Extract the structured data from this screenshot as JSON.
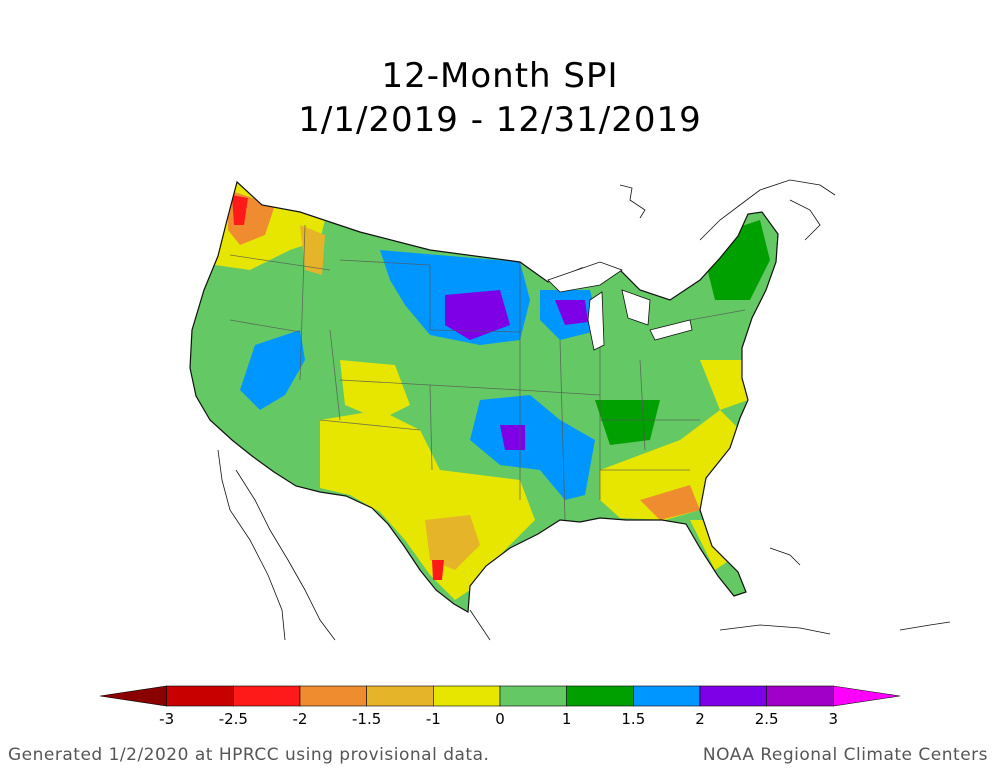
{
  "title": "12-Month SPI",
  "subtitle": "1/1/2019 - 12/31/2019",
  "legend": {
    "bins": [
      {
        "from": null,
        "to": -3,
        "color": "#8b0000"
      },
      {
        "from": -3,
        "to": -2.5,
        "color": "#c80000"
      },
      {
        "from": -2.5,
        "to": -2,
        "color": "#ff1a1a"
      },
      {
        "from": -2,
        "to": -1.5,
        "color": "#f08c30"
      },
      {
        "from": -1.5,
        "to": -1,
        "color": "#e6b428"
      },
      {
        "from": -1,
        "to": 0,
        "color": "#e6e600"
      },
      {
        "from": 0,
        "to": 1,
        "color": "#64c864"
      },
      {
        "from": 1,
        "to": 1.5,
        "color": "#00a000"
      },
      {
        "from": 1.5,
        "to": 2,
        "color": "#0096ff"
      },
      {
        "from": 2,
        "to": 2.5,
        "color": "#7d00e6"
      },
      {
        "from": 2.5,
        "to": 3,
        "color": "#a000c8"
      },
      {
        "from": 3,
        "to": null,
        "color": "#ff00ff"
      }
    ],
    "tick_labels": [
      "-3",
      "-2.5",
      "-2",
      "-1.5",
      "-1",
      "0",
      "1",
      "1.5",
      "2",
      "2.5",
      "3"
    ]
  },
  "footer": {
    "left": "Generated 1/2/2020 at HPRCC using provisional data.",
    "right": "NOAA Regional Climate Centers"
  }
}
